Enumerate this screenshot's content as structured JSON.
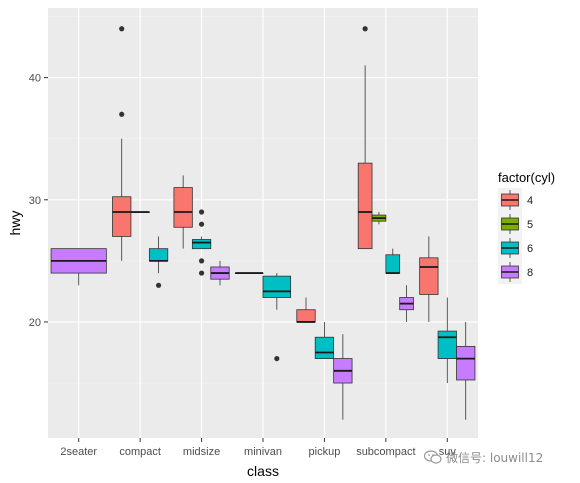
{
  "chart_data": {
    "type": "boxplot",
    "xlabel": "class",
    "ylabel": "hwy",
    "ylim": [
      10.5,
      45.7
    ],
    "yticks": [
      20,
      30,
      40
    ],
    "categories": [
      "2seater",
      "compact",
      "midsize",
      "minivan",
      "pickup",
      "subcompact",
      "suv"
    ],
    "legend": {
      "title": "factor(cyl)",
      "position": "right",
      "entries": [
        {
          "label": "4",
          "color": "#F8766D"
        },
        {
          "label": "5",
          "color": "#7CAE00"
        },
        {
          "label": "6",
          "color": "#00BFC4"
        },
        {
          "label": "8",
          "color": "#C77CFF"
        }
      ]
    },
    "boxes": [
      {
        "category": "2seater",
        "cyl": "8",
        "slot": 0,
        "nslots": 1,
        "lower_whisker": 23,
        "q1": 24,
        "median": 25,
        "q3": 26,
        "upper_whisker": 26,
        "outliers": []
      },
      {
        "category": "compact",
        "cyl": "4",
        "slot": 0,
        "nslots": 3,
        "lower_whisker": 25,
        "q1": 27,
        "median": 29,
        "q3": 30.25,
        "upper_whisker": 35,
        "outliers": [
          37,
          44
        ]
      },
      {
        "category": "compact",
        "cyl": "5",
        "slot": 1,
        "nslots": 3,
        "lower_whisker": 29,
        "q1": 29,
        "median": 29,
        "q3": 29,
        "upper_whisker": 29,
        "outliers": []
      },
      {
        "category": "compact",
        "cyl": "6",
        "slot": 2,
        "nslots": 3,
        "lower_whisker": 24,
        "q1": 25,
        "median": 25,
        "q3": 26,
        "upper_whisker": 27,
        "outliers": [
          23
        ]
      },
      {
        "category": "midsize",
        "cyl": "4",
        "slot": 0,
        "nslots": 3,
        "lower_whisker": 26,
        "q1": 27.75,
        "median": 29,
        "q3": 31,
        "upper_whisker": 32,
        "outliers": []
      },
      {
        "category": "midsize",
        "cyl": "6",
        "slot": 1,
        "nslots": 3,
        "lower_whisker": 26,
        "q1": 26,
        "median": 26.5,
        "q3": 26.75,
        "upper_whisker": 27,
        "outliers": [
          29,
          28,
          25,
          24
        ]
      },
      {
        "category": "midsize",
        "cyl": "8",
        "slot": 2,
        "nslots": 3,
        "lower_whisker": 23,
        "q1": 23.5,
        "median": 24,
        "q3": 24.5,
        "upper_whisker": 25,
        "outliers": []
      },
      {
        "category": "minivan",
        "cyl": "4",
        "slot": 0,
        "nslots": 2,
        "lower_whisker": 24,
        "q1": 24,
        "median": 24,
        "q3": 24,
        "upper_whisker": 24,
        "outliers": []
      },
      {
        "category": "minivan",
        "cyl": "6",
        "slot": 1,
        "nslots": 2,
        "lower_whisker": 21,
        "q1": 22,
        "median": 22.5,
        "q3": 23.75,
        "upper_whisker": 24,
        "outliers": [
          17
        ]
      },
      {
        "category": "pickup",
        "cyl": "4",
        "slot": 0,
        "nslots": 3,
        "lower_whisker": 20,
        "q1": 20,
        "median": 20,
        "q3": 21,
        "upper_whisker": 22,
        "outliers": []
      },
      {
        "category": "pickup",
        "cyl": "6",
        "slot": 1,
        "nslots": 3,
        "lower_whisker": 17,
        "q1": 17,
        "median": 17.5,
        "q3": 18.75,
        "upper_whisker": 20,
        "outliers": []
      },
      {
        "category": "pickup",
        "cyl": "8",
        "slot": 2,
        "nslots": 3,
        "lower_whisker": 12,
        "q1": 15,
        "median": 16,
        "q3": 17,
        "upper_whisker": 19,
        "outliers": []
      },
      {
        "category": "subcompact",
        "cyl": "4",
        "slot": 0,
        "nslots": 4,
        "lower_whisker": 26,
        "q1": 26,
        "median": 29,
        "q3": 33,
        "upper_whisker": 41,
        "outliers": [
          44
        ]
      },
      {
        "category": "subcompact",
        "cyl": "5",
        "slot": 1,
        "nslots": 4,
        "lower_whisker": 28,
        "q1": 28.25,
        "median": 28.5,
        "q3": 28.75,
        "upper_whisker": 29,
        "outliers": []
      },
      {
        "category": "subcompact",
        "cyl": "6",
        "slot": 2,
        "nslots": 4,
        "lower_whisker": 24,
        "q1": 24,
        "median": 24,
        "q3": 25.5,
        "upper_whisker": 26,
        "outliers": []
      },
      {
        "category": "subcompact",
        "cyl": "8",
        "slot": 3,
        "nslots": 4,
        "lower_whisker": 20,
        "q1": 21,
        "median": 21.5,
        "q3": 22,
        "upper_whisker": 23,
        "outliers": []
      },
      {
        "category": "suv",
        "cyl": "4",
        "slot": 0,
        "nslots": 3,
        "lower_whisker": 20,
        "q1": 22.25,
        "median": 24.5,
        "q3": 25.25,
        "upper_whisker": 27,
        "outliers": []
      },
      {
        "category": "suv",
        "cyl": "6",
        "slot": 1,
        "nslots": 3,
        "lower_whisker": 15,
        "q1": 17,
        "median": 18.75,
        "q3": 19.25,
        "upper_whisker": 22,
        "outliers": []
      },
      {
        "category": "suv",
        "cyl": "8",
        "slot": 2,
        "nslots": 3,
        "lower_whisker": 12,
        "q1": 15.25,
        "median": 17,
        "q3": 18,
        "upper_whisker": 20,
        "outliers": []
      }
    ]
  },
  "colors": {
    "panel_background": "#EBEBEB",
    "grid_major": "#FFFFFF",
    "grid_minor": "#F4F4F4",
    "box_outline": "#333333",
    "axis_text": "#4D4D4D",
    "title_text": "#000000"
  },
  "watermark": {
    "icon": "wechat-icon",
    "text": "微信号: louwill12"
  }
}
